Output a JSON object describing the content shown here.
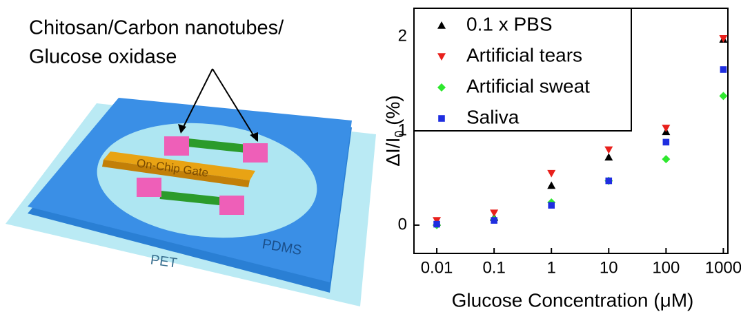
{
  "diagram": {
    "label_lines": [
      "Chitosan/Carbon nanotubes/",
      "Glucose oxidase"
    ],
    "gate": "On-Chip Gate",
    "frame": "PDMS",
    "substrate": "PET"
  },
  "chart_data": {
    "type": "scatter",
    "xscale": "log",
    "xlabel": "Glucose Concentration (μM)",
    "ylabel": [
      "ΔI/I",
      "0",
      " (%)"
    ],
    "x": [
      0.01,
      0.1,
      1,
      10,
      100,
      1000
    ],
    "xlim": [
      0.004,
      1200
    ],
    "xticks": [
      0.01,
      0.1,
      1,
      10,
      100,
      1000
    ],
    "ylim": [
      -0.3,
      2.3
    ],
    "yticks": [
      0,
      1,
      2
    ],
    "legend": "upper left",
    "series": [
      {
        "name": "0.1 x PBS",
        "color": "#000000",
        "marker": "triangle-up",
        "values": [
          0.03,
          0.08,
          0.42,
          0.72,
          0.99,
          1.97
        ]
      },
      {
        "name": "Artificial tears",
        "color": "#e8201c",
        "marker": "triangle-down",
        "values": [
          0.05,
          0.13,
          0.55,
          0.8,
          1.03,
          1.98
        ]
      },
      {
        "name": "Artificial sweat",
        "color": "#2ee82e",
        "marker": "diamond",
        "values": [
          0.0,
          0.06,
          0.24,
          0.47,
          0.7,
          1.37
        ]
      },
      {
        "name": "Saliva",
        "color": "#1f2ee0",
        "marker": "square",
        "values": [
          0.01,
          0.05,
          0.21,
          0.47,
          0.88,
          1.65
        ]
      }
    ]
  }
}
